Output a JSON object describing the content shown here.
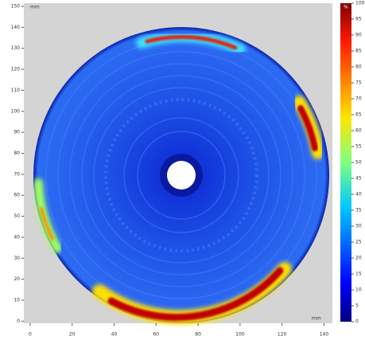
{
  "chart_data": {
    "type": "heatmap",
    "x_label": "mm",
    "y_label": "mm",
    "xlim": [
      -3,
      144
    ],
    "ylim": [
      -1,
      151.5
    ],
    "xticks": [
      0,
      20,
      40,
      60,
      80,
      100,
      120,
      140
    ],
    "yticks": [
      0,
      10,
      20,
      30,
      40,
      50,
      60,
      70,
      80,
      90,
      100,
      110,
      120,
      130,
      140,
      150
    ],
    "colormap": "jet",
    "colorbar": {
      "label": "%",
      "lim": [
        0,
        100
      ],
      "ticks": [
        0,
        5,
        10,
        15,
        20,
        25,
        30,
        35,
        40,
        45,
        50,
        55,
        60,
        65,
        70,
        75,
        80,
        85,
        90,
        95,
        100
      ]
    }
  }
}
